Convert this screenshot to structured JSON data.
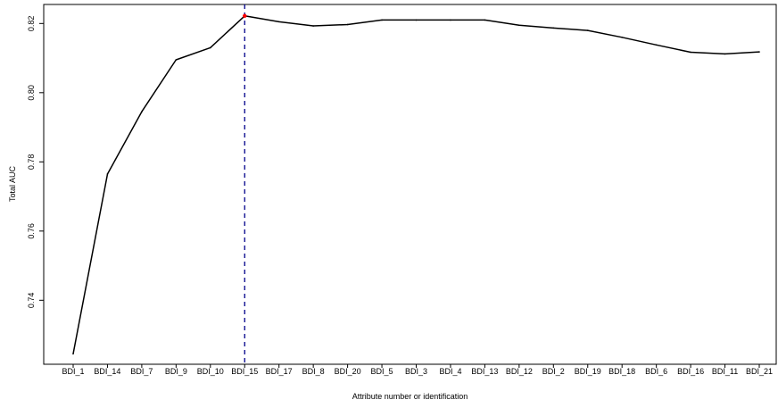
{
  "chart_data": {
    "type": "line",
    "title": "",
    "xlabel": "Attribute number or identification",
    "ylabel": "Total AUC",
    "categories": [
      "BDI_1",
      "BDI_14",
      "BDI_7",
      "BDI_9",
      "BDI_10",
      "BDI_15",
      "BDI_17",
      "BDI_8",
      "BDI_20",
      "BDI_5",
      "BDI_3",
      "BDI_4",
      "BDI_13",
      "BDI_12",
      "BDI_2",
      "BDI_19",
      "BDI_18",
      "BDI_6",
      "BDI_16",
      "BDI_11",
      "BDI_21"
    ],
    "series": [
      {
        "values": [
          0.7245,
          0.7765,
          0.7945,
          0.8095,
          0.813,
          0.8222,
          0.8205,
          0.8193,
          0.8197,
          0.821,
          0.821,
          0.821,
          0.821,
          0.8195,
          0.8187,
          0.818,
          0.816,
          0.8138,
          0.8117,
          0.8112,
          0.8118
        ]
      }
    ],
    "yticks": [
      0.74,
      0.76,
      0.78,
      0.8,
      0.82
    ],
    "ytick_labels": [
      "0.74",
      "0.76",
      "0.78",
      "0.80",
      "0.82"
    ],
    "ylim": [
      0.7215,
      0.8255
    ],
    "highlight": {
      "category": "BDI_15",
      "value": 0.8222,
      "marker_color": "#ff0000",
      "vline_color": "#00008b",
      "vline_style": "dashed"
    },
    "line_color": "#000000",
    "grid": false,
    "legend": "none"
  }
}
